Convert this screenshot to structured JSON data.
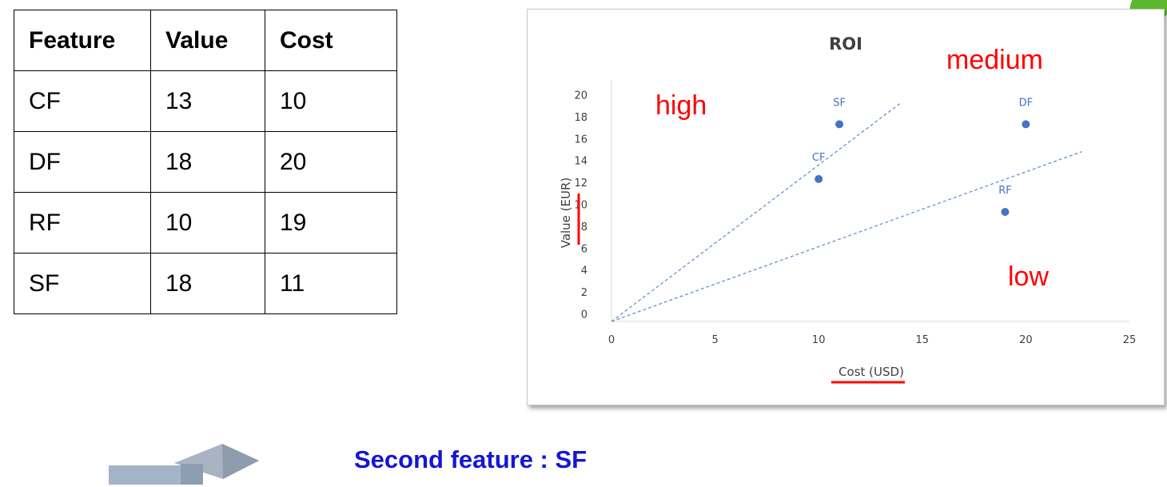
{
  "table": {
    "headers": [
      "Feature",
      "Value",
      "Cost"
    ],
    "rows": [
      [
        "CF",
        "13",
        "10"
      ],
      [
        "DF",
        "18",
        "20"
      ],
      [
        "RF",
        "10",
        "19"
      ],
      [
        "SF",
        "18",
        "11"
      ]
    ]
  },
  "chart_data": {
    "type": "scatter",
    "title": "ROI",
    "xlabel": "Cost (USD)",
    "ylabel": "Value (EUR)",
    "xlim": [
      0,
      25
    ],
    "ylim": [
      0,
      20
    ],
    "xticks": [
      0,
      5,
      10,
      15,
      20,
      25
    ],
    "yticks": [
      0,
      2,
      4,
      6,
      8,
      10,
      12,
      14,
      16,
      18,
      20
    ],
    "grid": false,
    "points": [
      {
        "label": "SF",
        "x": 11,
        "y": 18
      },
      {
        "label": "DF",
        "x": 20,
        "y": 18
      },
      {
        "label": "CF",
        "x": 10,
        "y": 13
      },
      {
        "label": "RF",
        "x": 19,
        "y": 10
      }
    ],
    "trendlines": [
      {
        "from": [
          0,
          0
        ],
        "to": [
          14,
          20
        ]
      },
      {
        "from": [
          0,
          0
        ],
        "to": [
          22.7,
          15.5
        ]
      }
    ],
    "annotations": [
      "high",
      "medium",
      "low"
    ],
    "colors": {
      "points": "#4472c4",
      "annotations": "#ff0000",
      "underline": "#ff0000"
    }
  },
  "conclusion": "Second feature : SF"
}
